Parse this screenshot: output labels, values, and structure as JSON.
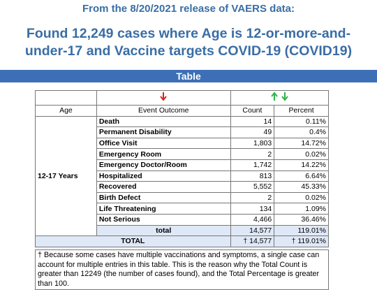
{
  "header": {
    "release_note": "From the 8/20/2021 release of VAERS data:",
    "title": "Found 12,249 cases where Age is 12-or-more-and-under-17 and Vaccine targets COVID-19 (COVID19)"
  },
  "section": {
    "title": "Table"
  },
  "table": {
    "columns": [
      "Age",
      "Event Outcome",
      "Count",
      "Percent"
    ],
    "age_group": "12-17 Years",
    "rows": [
      [
        "Death",
        "14",
        "0.11%"
      ],
      [
        "Permanent Disability",
        "49",
        "0.4%"
      ],
      [
        "Office Visit",
        "1,803",
        "14.72%"
      ],
      [
        "Emergency Room",
        "2",
        "0.02%"
      ],
      [
        "Emergency Doctor/Room",
        "1,742",
        "14.22%"
      ],
      [
        "Hospitalized",
        "813",
        "6.64%"
      ],
      [
        "Recovered",
        "5,552",
        "45.33%"
      ],
      [
        "Birth Defect",
        "2",
        "0.02%"
      ],
      [
        "Life Threatening",
        "134",
        "1.09%"
      ],
      [
        "Not Serious",
        "4,466",
        "36.46%"
      ]
    ],
    "subtotal": {
      "label": "total",
      "count": "14,577",
      "percent": "119.01%"
    },
    "total": {
      "label": "TOTAL",
      "count": "† 14,577",
      "percent": "† 119.01%"
    },
    "footnote": "† Because some cases have multiple vaccinations and symptoms, a single case can account for multiple entries in this table. This is the reason why the Total Count is greater than 12249 (the number of cases found), and the Total Percentage is greater than 100."
  }
}
